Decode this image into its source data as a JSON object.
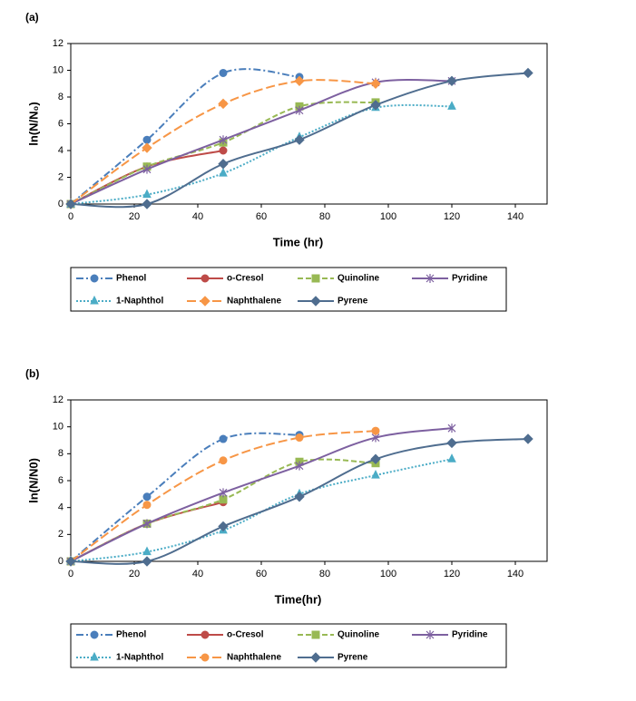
{
  "chart_data": [
    {
      "type": "line",
      "title": "(a)",
      "xlabel": "Time (hr)",
      "ylabel": "ln(N/N₀)",
      "xlim": [
        0,
        150
      ],
      "xticks": [
        0,
        20,
        40,
        60,
        80,
        100,
        120,
        140
      ],
      "ylim": [
        0,
        12
      ],
      "yticks": [
        0,
        2,
        4,
        6,
        8,
        10,
        12
      ],
      "grid": false,
      "series": [
        {
          "name": "Phenol",
          "color": "#4a7ebb",
          "dash": "dashdot",
          "marker": "circle",
          "x": [
            0,
            24,
            48,
            72
          ],
          "values": [
            0,
            4.8,
            9.8,
            9.5
          ]
        },
        {
          "name": "o-Cresol",
          "color": "#be4b48",
          "dash": "solid",
          "marker": "circle",
          "x": [
            0,
            24,
            48
          ],
          "values": [
            0,
            2.8,
            4.0
          ]
        },
        {
          "name": "Quinoline",
          "color": "#98b954",
          "dash": "dashed",
          "marker": "square",
          "x": [
            0,
            24,
            48,
            72,
            96
          ],
          "values": [
            0,
            2.8,
            4.6,
            7.3,
            7.6
          ]
        },
        {
          "name": "Pyridine",
          "color": "#7d60a0",
          "dash": "solid",
          "marker": "star",
          "x": [
            0,
            24,
            48,
            72,
            96,
            120
          ],
          "values": [
            0,
            2.6,
            4.8,
            7.0,
            9.1,
            9.2
          ]
        },
        {
          "name": "1-Naphthol",
          "color": "#4bacc6",
          "dash": "dotted",
          "marker": "triangle",
          "x": [
            0,
            24,
            48,
            72,
            96,
            120
          ],
          "values": [
            0,
            0.7,
            2.3,
            5.0,
            7.2,
            7.3
          ]
        },
        {
          "name": "Naphthalene",
          "color": "#f79646",
          "dash": "longdash",
          "marker": "diamond",
          "x": [
            0,
            24,
            48,
            72,
            96
          ],
          "values": [
            0,
            4.2,
            7.5,
            9.2,
            9.0
          ]
        },
        {
          "name": "Pyrene",
          "color": "#4f6d8f",
          "dash": "solid",
          "marker": "diamond",
          "x": [
            0,
            24,
            48,
            72,
            96,
            120,
            144
          ],
          "values": [
            0,
            0,
            3.0,
            4.8,
            7.4,
            9.2,
            9.8
          ]
        }
      ]
    },
    {
      "type": "line",
      "title": "(b)",
      "xlabel": "Time(hr)",
      "ylabel": "ln(N/N0)",
      "xlim": [
        0,
        150
      ],
      "xticks": [
        0,
        20,
        40,
        60,
        80,
        100,
        120,
        140
      ],
      "ylim": [
        0,
        12
      ],
      "yticks": [
        0,
        2,
        4,
        6,
        8,
        10,
        12
      ],
      "grid": false,
      "series": [
        {
          "name": "Phenol",
          "color": "#4a7ebb",
          "dash": "dashdot",
          "marker": "circle",
          "x": [
            0,
            24,
            48,
            72
          ],
          "values": [
            0,
            4.8,
            9.1,
            9.4
          ]
        },
        {
          "name": "o-Cresol",
          "color": "#be4b48",
          "dash": "solid",
          "marker": "circle",
          "x": [
            0,
            24,
            48
          ],
          "values": [
            0,
            2.8,
            4.4
          ]
        },
        {
          "name": "Quinoline",
          "color": "#98b954",
          "dash": "dashed",
          "marker": "square",
          "x": [
            0,
            24,
            48,
            72,
            96
          ],
          "values": [
            0,
            2.8,
            4.6,
            7.4,
            7.3
          ]
        },
        {
          "name": "Pyridine",
          "color": "#7d60a0",
          "dash": "solid",
          "marker": "star",
          "x": [
            0,
            24,
            48,
            72,
            96,
            120
          ],
          "values": [
            0,
            2.8,
            5.1,
            7.1,
            9.2,
            9.9
          ]
        },
        {
          "name": "1-Naphthol",
          "color": "#4bacc6",
          "dash": "dotted",
          "marker": "triangle",
          "x": [
            0,
            24,
            48,
            72,
            96,
            120
          ],
          "values": [
            0,
            0.7,
            2.3,
            5.0,
            6.4,
            7.6
          ]
        },
        {
          "name": "Naphthalene",
          "color": "#f79646",
          "dash": "longdash",
          "marker": "circle",
          "x": [
            0,
            24,
            48,
            72,
            96
          ],
          "values": [
            0,
            4.2,
            7.5,
            9.2,
            9.7
          ]
        },
        {
          "name": "Pyrene",
          "color": "#4f6d8f",
          "dash": "solid",
          "marker": "diamond",
          "x": [
            0,
            24,
            48,
            72,
            96,
            120,
            144
          ],
          "values": [
            0,
            0,
            2.6,
            4.8,
            7.6,
            8.8,
            9.1
          ]
        }
      ]
    }
  ]
}
